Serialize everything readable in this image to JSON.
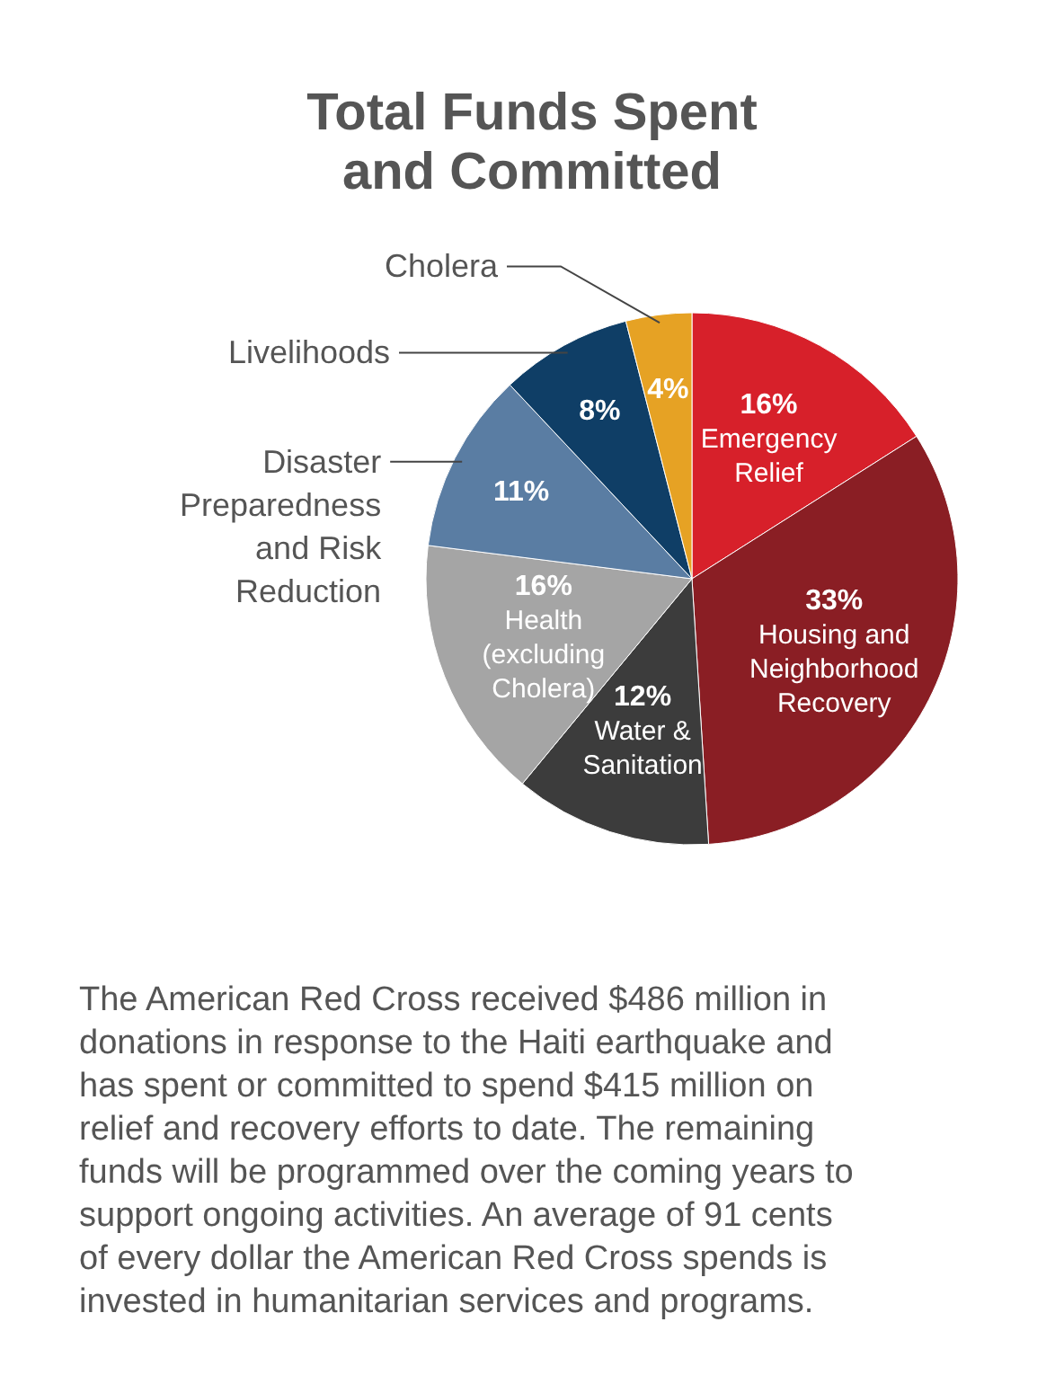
{
  "chart_data": {
    "type": "pie",
    "title": "Total Funds Spent and Committed",
    "categories": [
      "Emergency Relief",
      "Housing and Neighborhood Recovery",
      "Water & Sanitation",
      "Health (excluding Cholera)",
      "Disaster Preparedness and Risk Reduction",
      "Livelihoods",
      "Cholera"
    ],
    "values": [
      16,
      33,
      12,
      16,
      11,
      8,
      4
    ],
    "colors": [
      "#d7202a",
      "#8a1e24",
      "#3c3c3c",
      "#a5a5a5",
      "#5a7da3",
      "#0f3e66",
      "#e6a224"
    ],
    "value_labels": [
      "16%",
      "33%",
      "12%",
      "16%",
      "11%",
      "8%",
      "4%"
    ],
    "annotations": [
      "The American Red Cross received $486 million in donations in response to the Haiti earthquake and has spent or committed to spend $415 million on relief and recovery efforts to date. The remaining funds will be programmed over the coming years to support ongoing activities. An average of 91 cents of every dollar the American Red Cross spends is invested in humanitarian services and programs."
    ]
  }
}
